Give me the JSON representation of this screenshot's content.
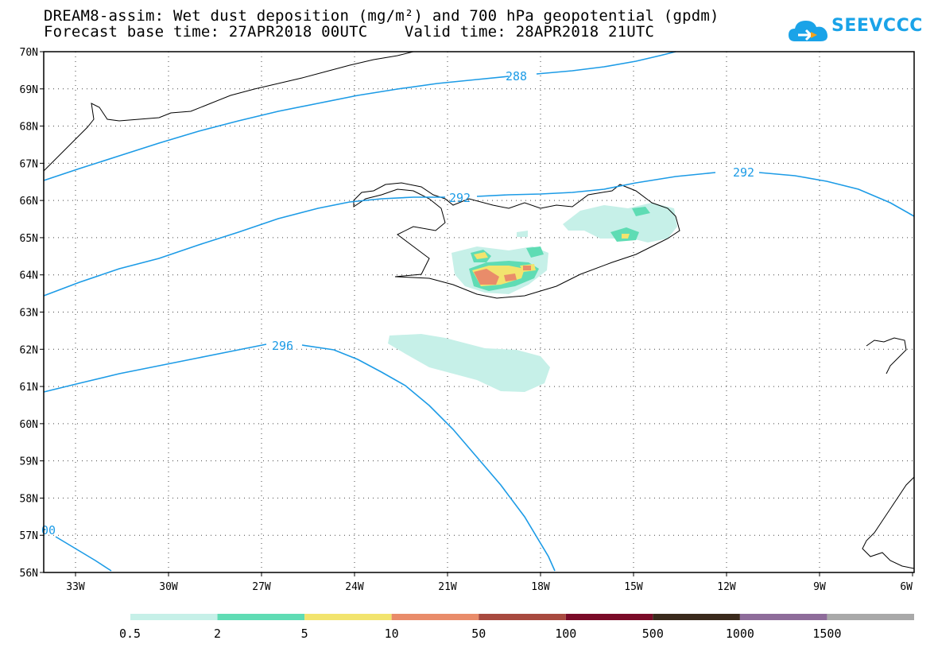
{
  "header": {
    "title_line1": "DREAM8-assim: Wet dust deposition (mg/m²) and 700 hPa geopotential (gpdm)",
    "title_line2": "Forecast base time: 27APR2018 00UTC    Valid time: 28APR2018 21UTC"
  },
  "logo": {
    "text": "SEEVCCC"
  },
  "map": {
    "lat_labels": [
      "70N",
      "69N",
      "68N",
      "67N",
      "66N",
      "65N",
      "64N",
      "63N",
      "62N",
      "61N",
      "60N",
      "59N",
      "58N",
      "57N",
      "56N"
    ],
    "lon_labels": [
      "33W",
      "30W",
      "27W",
      "24W",
      "21W",
      "18W",
      "15W",
      "12W",
      "9W",
      "6W"
    ],
    "contours": [
      {
        "value": "288",
        "color": "#1c9be6"
      },
      {
        "value": "292",
        "color": "#1c9be6"
      },
      {
        "value": "292",
        "color": "#1c9be6"
      },
      {
        "value": "296",
        "color": "#1c9be6"
      },
      {
        "value": "00",
        "color": "#1c9be6"
      }
    ]
  },
  "legend": {
    "colors": [
      "#c6f0e8",
      "#5fdcb4",
      "#f2e46e",
      "#e98c6a",
      "#a84a3f",
      "#7a0b28",
      "#3a2a1c",
      "#8e6c9a",
      "#a9a9a9"
    ],
    "labels": [
      "0.5",
      "2",
      "5",
      "10",
      "50",
      "100",
      "500",
      "1000",
      "1500"
    ]
  }
}
